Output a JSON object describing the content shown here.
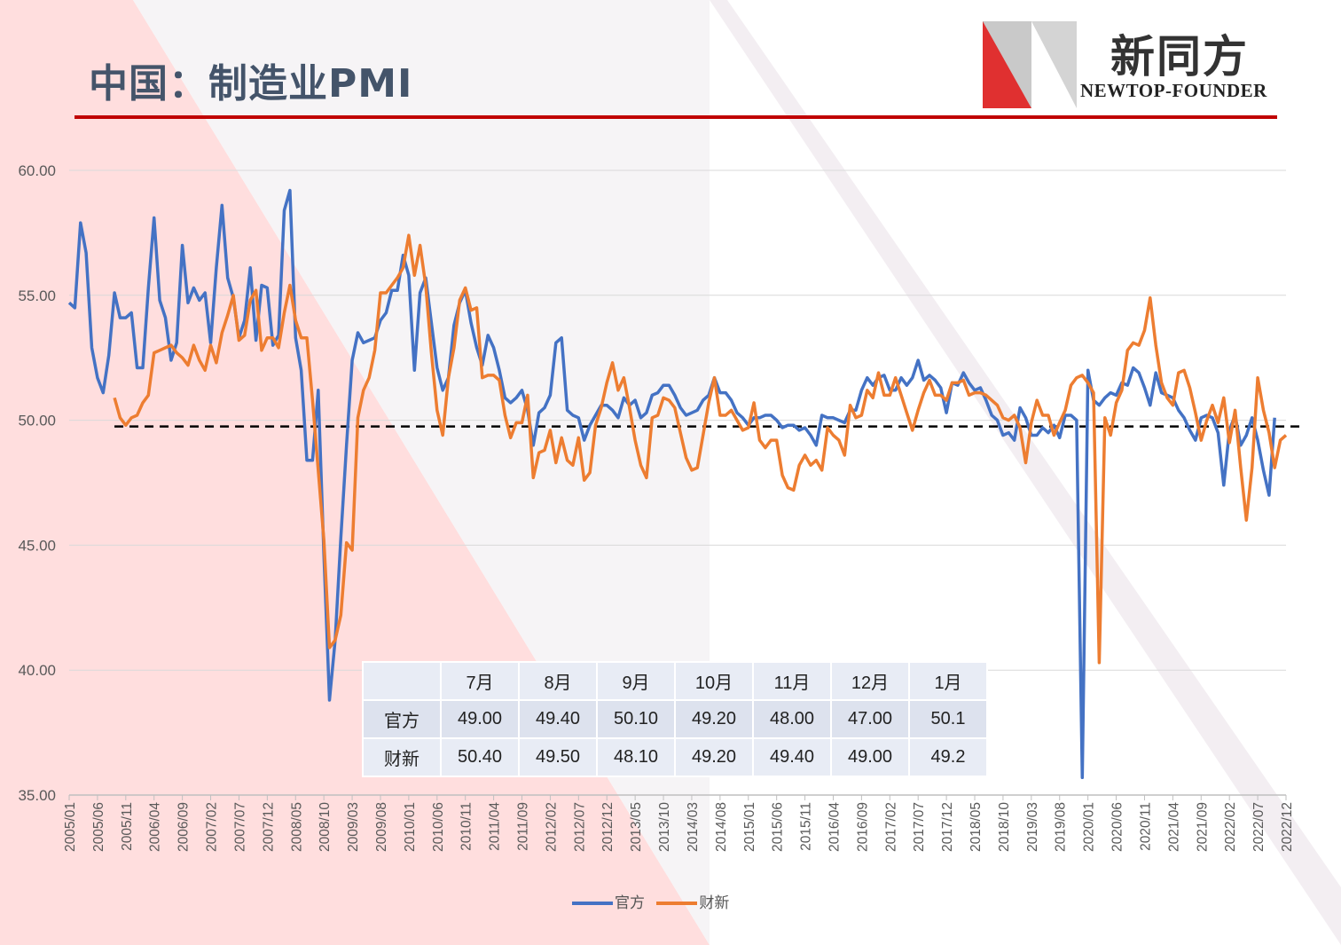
{
  "header": {
    "title": "中国：制造业PMI",
    "logo_cn": "新同方",
    "logo_en": "NEWTOP-FOUNDER"
  },
  "colors": {
    "official": "#4472c4",
    "caixin": "#ed7d31",
    "accent_red": "#c00000",
    "grid": "#d9d9d9"
  },
  "chart_data": {
    "type": "line",
    "title": "中国：制造业PMI",
    "ylim": [
      35,
      60
    ],
    "yticks": [
      "35.00",
      "40.00",
      "45.00",
      "50.00",
      "55.00",
      "60.00"
    ],
    "reference_line": 49.75,
    "x_labels": [
      "2005/01",
      "2005/06",
      "2005/11",
      "2006/04",
      "2006/09",
      "2007/02",
      "2007/07",
      "2007/12",
      "2008/05",
      "2008/10",
      "2009/03",
      "2009/08",
      "2010/01",
      "2010/06",
      "2010/11",
      "2011/04",
      "2011/09",
      "2012/02",
      "2012/07",
      "2012/12",
      "2013/05",
      "2013/10",
      "2014/03",
      "2014/08",
      "2015/01",
      "2015/06",
      "2015/11",
      "2016/04",
      "2016/09",
      "2017/02",
      "2017/07",
      "2017/12",
      "2018/05",
      "2018/10",
      "2019/03",
      "2019/08",
      "2020/01",
      "2020/06",
      "2020/11",
      "2021/04",
      "2021/09",
      "2022/02",
      "2022/07",
      "2022/12"
    ],
    "series": [
      {
        "name": "官方",
        "start": "2005/01",
        "values": [
          54.7,
          54.5,
          57.9,
          56.7,
          52.9,
          51.7,
          51.1,
          52.6,
          55.1,
          54.1,
          54.1,
          54.3,
          52.1,
          52.1,
          55.3,
          58.1,
          54.8,
          54.1,
          52.4,
          53.1,
          57.0,
          54.7,
          55.3,
          54.8,
          55.1,
          53.1,
          56.1,
          58.6,
          55.7,
          54.9,
          53.3,
          54.0,
          56.1,
          53.2,
          55.4,
          55.3,
          53.0,
          53.4,
          58.4,
          59.2,
          53.3,
          52.0,
          48.4,
          48.4,
          51.2,
          44.6,
          38.8,
          41.2,
          45.3,
          49.0,
          52.4,
          53.5,
          53.1,
          53.2,
          53.3,
          54.0,
          54.3,
          55.2,
          55.2,
          56.6,
          55.8,
          52.0,
          55.1,
          55.7,
          53.9,
          52.1,
          51.2,
          51.7,
          53.8,
          54.7,
          55.2,
          53.9,
          52.9,
          52.2,
          53.4,
          52.9,
          52.0,
          50.9,
          50.7,
          50.9,
          51.2,
          50.4,
          49.0,
          50.3,
          50.5,
          51.0,
          53.1,
          53.3,
          50.4,
          50.2,
          50.1,
          49.2,
          49.8,
          50.2,
          50.6,
          50.6,
          50.4,
          50.1,
          50.9,
          50.6,
          50.8,
          50.1,
          50.3,
          51.0,
          51.1,
          51.4,
          51.4,
          51.0,
          50.5,
          50.2,
          50.3,
          50.4,
          50.8,
          51.0,
          51.7,
          51.1,
          51.1,
          50.8,
          50.3,
          50.1,
          49.8,
          50.1,
          50.1,
          50.2,
          50.2,
          50.0,
          49.7,
          49.8,
          49.8,
          49.6,
          49.7,
          49.4,
          49.0,
          50.2,
          50.1,
          50.1,
          50.0,
          49.9,
          50.4,
          50.4,
          51.2,
          51.7,
          51.4,
          51.7,
          51.8,
          51.2,
          51.2,
          51.7,
          51.4,
          51.7,
          52.4,
          51.6,
          51.8,
          51.6,
          51.3,
          50.3,
          51.5,
          51.4,
          51.9,
          51.5,
          51.2,
          51.3,
          50.8,
          50.2,
          50.0,
          49.4,
          49.5,
          49.2,
          50.5,
          50.1,
          49.4,
          49.4,
          49.7,
          49.5,
          49.8,
          49.3,
          50.2,
          50.2,
          50.0,
          35.7,
          52.0,
          50.8,
          50.6,
          50.9,
          51.1,
          51.0,
          51.5,
          51.4,
          52.1,
          51.9,
          51.3,
          50.6,
          51.9,
          51.1,
          51.0,
          50.9,
          50.4,
          50.1,
          49.6,
          49.2,
          50.1,
          50.2,
          50.1,
          49.5,
          47.4,
          49.6,
          50.2,
          49.0,
          49.4,
          50.1,
          49.2,
          48.0,
          47.0,
          50.1
        ]
      },
      {
        "name": "财新",
        "start": "2005/09",
        "values": [
          50.9,
          50.1,
          49.8,
          50.1,
          50.2,
          50.7,
          51.0,
          52.7,
          52.8,
          52.9,
          53.0,
          52.7,
          52.5,
          52.2,
          53.0,
          52.4,
          52.0,
          53.0,
          52.3,
          53.5,
          54.2,
          55.0,
          53.2,
          53.4,
          54.8,
          55.2,
          52.8,
          53.3,
          53.3,
          52.9,
          54.3,
          55.4,
          54.0,
          53.3,
          53.3,
          50.8,
          48.0,
          45.2,
          40.9,
          41.2,
          42.2,
          45.1,
          44.8,
          50.1,
          51.2,
          51.7,
          52.8,
          55.1,
          55.1,
          55.4,
          55.7,
          56.1,
          57.4,
          55.8,
          57.0,
          55.4,
          52.7,
          50.4,
          49.4,
          51.7,
          52.9,
          54.8,
          55.3,
          54.4,
          54.5,
          51.7,
          51.8,
          51.8,
          51.6,
          50.2,
          49.3,
          49.9,
          49.9,
          51.0,
          47.7,
          48.7,
          48.8,
          49.6,
          48.3,
          49.3,
          48.4,
          48.2,
          49.3,
          47.6,
          47.9,
          49.8,
          50.5,
          51.5,
          52.3,
          51.2,
          51.7,
          50.5,
          49.2,
          48.2,
          47.7,
          50.1,
          50.2,
          50.9,
          50.8,
          50.5,
          49.5,
          48.5,
          48.0,
          48.1,
          49.4,
          50.7,
          51.7,
          50.2,
          50.2,
          50.4,
          50.0,
          49.6,
          49.7,
          50.7,
          49.2,
          48.9,
          49.2,
          49.2,
          47.8,
          47.3,
          47.2,
          48.2,
          48.6,
          48.2,
          48.4,
          48.0,
          49.7,
          49.4,
          49.2,
          48.6,
          50.6,
          50.1,
          50.2,
          51.2,
          50.9,
          51.9,
          51.0,
          51.0,
          51.7,
          51.0,
          50.3,
          49.6,
          50.4,
          51.1,
          51.6,
          51.0,
          51.0,
          50.8,
          51.5,
          51.5,
          51.6,
          51.0,
          51.1,
          51.1,
          51.0,
          50.8,
          50.6,
          50.1,
          50.0,
          50.2,
          49.7,
          48.3,
          49.9,
          50.8,
          50.2,
          50.2,
          49.4,
          49.9,
          50.4,
          51.4,
          51.7,
          51.8,
          51.5,
          51.1,
          40.3,
          50.1,
          49.4,
          50.7,
          51.2,
          52.8,
          53.1,
          53.0,
          53.6,
          54.9,
          53.0,
          51.5,
          50.9,
          50.6,
          51.9,
          52.0,
          51.3,
          50.3,
          49.2,
          50.0,
          50.6,
          49.9,
          50.9,
          49.1,
          50.4,
          48.1,
          46.0,
          48.1,
          51.7,
          50.4,
          49.5,
          48.1,
          49.2,
          49.4
        ]
      }
    ],
    "legend": [
      "官方",
      "财新"
    ],
    "legend_position": "bottom"
  },
  "table": {
    "columns": [
      "",
      "7月",
      "8月",
      "9月",
      "10月",
      "11月",
      "12月",
      "1月"
    ],
    "rows": [
      {
        "label": "官方",
        "values": [
          "49.00",
          "49.40",
          "50.10",
          "49.20",
          "48.00",
          "47.00",
          "50.1"
        ]
      },
      {
        "label": "财新",
        "values": [
          "50.40",
          "49.50",
          "48.10",
          "49.20",
          "49.40",
          "49.00",
          "49.2"
        ]
      }
    ]
  }
}
